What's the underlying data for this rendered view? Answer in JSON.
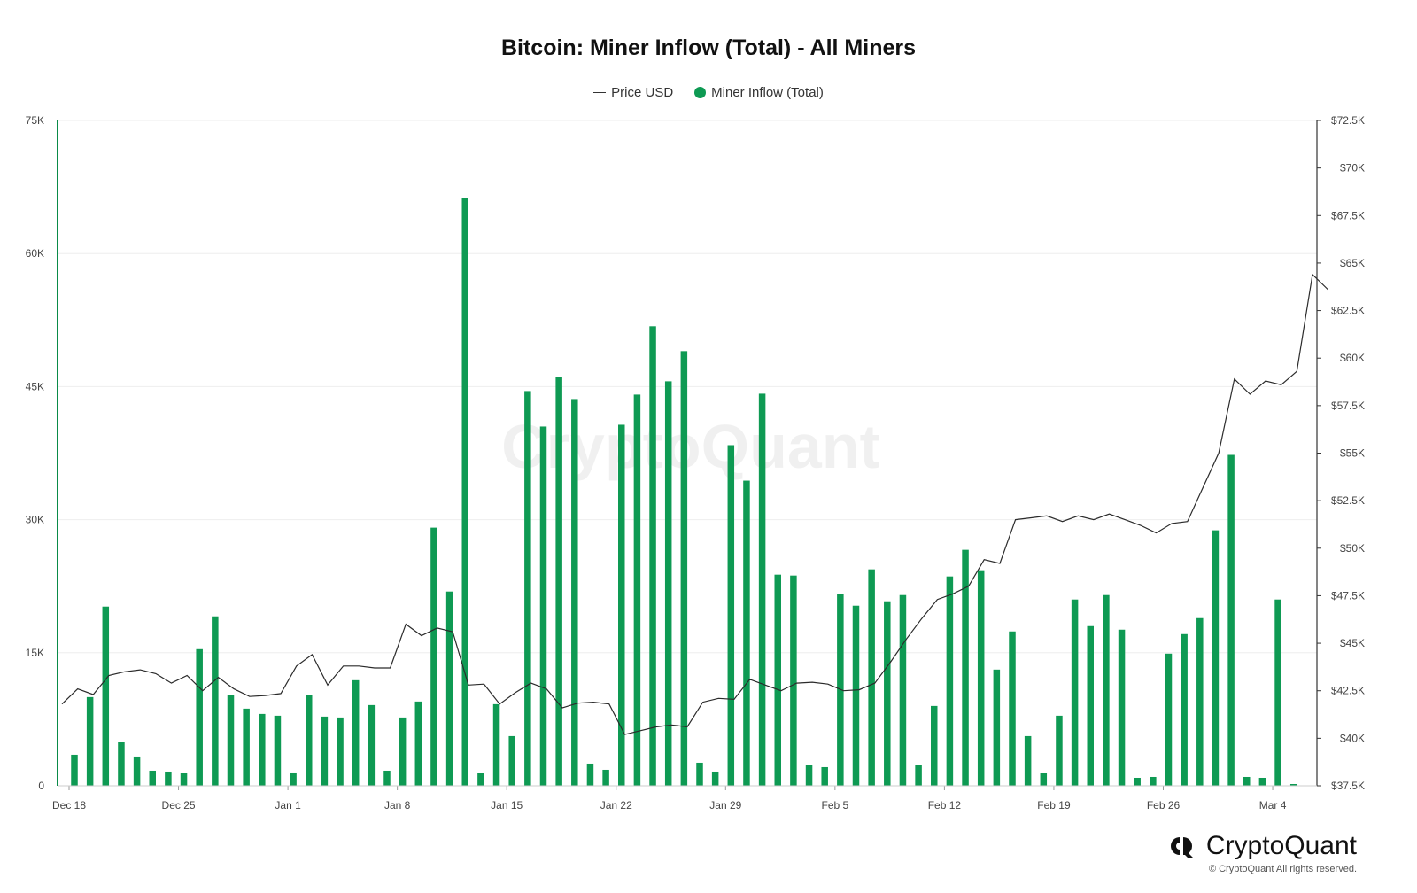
{
  "chart_data": {
    "type": "bar",
    "title": "Bitcoin: Miner Inflow (Total) - All Miners",
    "legend": [
      {
        "name": "Price USD",
        "kind": "line",
        "color": "#333333"
      },
      {
        "name": "Miner Inflow (Total)",
        "kind": "dot",
        "color": "#0e9a53"
      }
    ],
    "x_ticks": [
      "Dec 18",
      "Dec 25",
      "Jan 1",
      "Jan 8",
      "Jan 15",
      "Jan 22",
      "Jan 29",
      "Feb 5",
      "Feb 12",
      "Feb 19",
      "Feb 26",
      "Mar 4"
    ],
    "y_left": {
      "ticks": [
        "0",
        "15K",
        "30K",
        "45K",
        "60K",
        "75K"
      ],
      "min": 0,
      "max": 75000
    },
    "y_right": {
      "ticks": [
        "$37.5K",
        "$40K",
        "$42.5K",
        "$45K",
        "$47.5K",
        "$50K",
        "$52.5K",
        "$55K",
        "$57.5K",
        "$60K",
        "$62.5K",
        "$65K",
        "$67.5K",
        "$70K",
        "$72.5K"
      ],
      "min": 37500,
      "max": 72500
    },
    "grid": true,
    "watermark": "CryptoQuant",
    "series": [
      {
        "name": "Miner Inflow (Total)",
        "start_date": "Dec 18",
        "values": [
          3500,
          10000,
          20200,
          4900,
          3300,
          1700,
          1600,
          1400,
          15400,
          19100,
          10200,
          8700,
          8100,
          7900,
          1500,
          10200,
          7800,
          7700,
          11900,
          9100,
          1700,
          7700,
          9500,
          29100,
          21900,
          66300,
          1400,
          9200,
          5600,
          44500,
          40500,
          46100,
          43600,
          2500,
          1800,
          40700,
          44100,
          51800,
          45600,
          49000,
          2600,
          1600,
          38400,
          34400,
          44200,
          23800,
          23700,
          2300,
          2100,
          21600,
          20300,
          24400,
          20800,
          21500,
          2300,
          9000,
          23600,
          26600,
          24300,
          13100,
          17400,
          5600,
          1400,
          7900,
          21000,
          18000,
          21500,
          17600,
          900,
          1000,
          14900,
          17100,
          18900,
          28800,
          37300,
          1000,
          900,
          21000,
          200
        ]
      },
      {
        "name": "Price USD",
        "start_date": "Dec 18",
        "values": [
          41800,
          42600,
          42300,
          43300,
          43500,
          43600,
          43400,
          42900,
          43300,
          42500,
          43200,
          42600,
          42200,
          42250,
          42350,
          43800,
          44400,
          42800,
          43800,
          43800,
          43700,
          43700,
          46000,
          45400,
          45800,
          45600,
          42800,
          42850,
          41800,
          42400,
          42900,
          42600,
          41600,
          41850,
          41900,
          41800,
          40200,
          40400,
          40600,
          40700,
          40600,
          41900,
          42100,
          42050,
          43100,
          42800,
          42500,
          42900,
          42950,
          42850,
          42500,
          42550,
          42900,
          44000,
          45200,
          46300,
          47300,
          47600,
          48000,
          49400,
          49200,
          51500,
          51600,
          51700,
          51400,
          51700,
          51500,
          51800,
          51500,
          51200,
          50800,
          51300,
          51400,
          53200,
          55000,
          58900,
          58100,
          58800,
          58600,
          59300,
          64400,
          63600
        ]
      }
    ]
  }
}
